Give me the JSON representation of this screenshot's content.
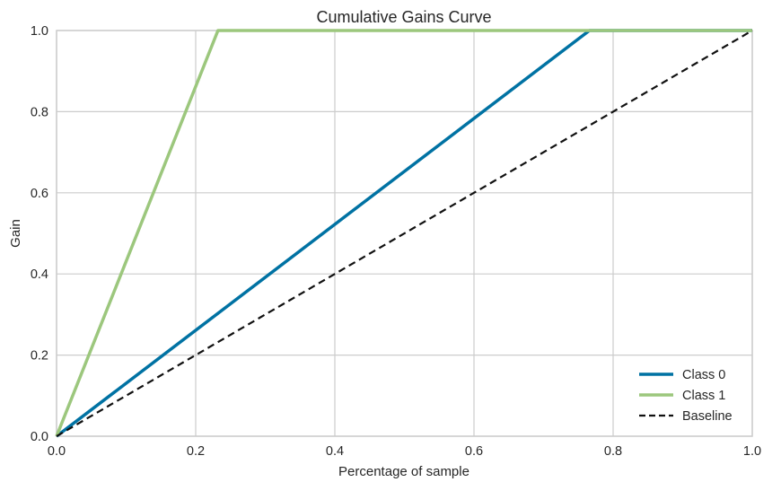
{
  "chart_data": {
    "type": "line",
    "title": "Cumulative Gains Curve",
    "xlabel": "Percentage of sample",
    "ylabel": "Gain",
    "xlim": [
      0.0,
      1.0
    ],
    "ylim": [
      0.0,
      1.0
    ],
    "xticks": [
      "0.0",
      "0.2",
      "0.4",
      "0.6",
      "0.8",
      "1.0"
    ],
    "yticks": [
      "0.0",
      "0.2",
      "0.4",
      "0.6",
      "0.8",
      "1.0"
    ],
    "grid": true,
    "legend_position": "lower right",
    "series": [
      {
        "name": "Class 0",
        "color": "#0072a3",
        "style": "solid",
        "x": [
          0.0,
          0.766,
          1.0
        ],
        "y": [
          0.0,
          1.0,
          1.0
        ]
      },
      {
        "name": "Class 1",
        "color": "#9cc77d",
        "style": "solid",
        "x": [
          0.0,
          0.232,
          1.0
        ],
        "y": [
          0.0,
          1.0,
          1.0
        ]
      },
      {
        "name": "Baseline",
        "color": "#111111",
        "style": "dashed",
        "x": [
          0.0,
          1.0
        ],
        "y": [
          0.0,
          1.0
        ]
      }
    ]
  }
}
